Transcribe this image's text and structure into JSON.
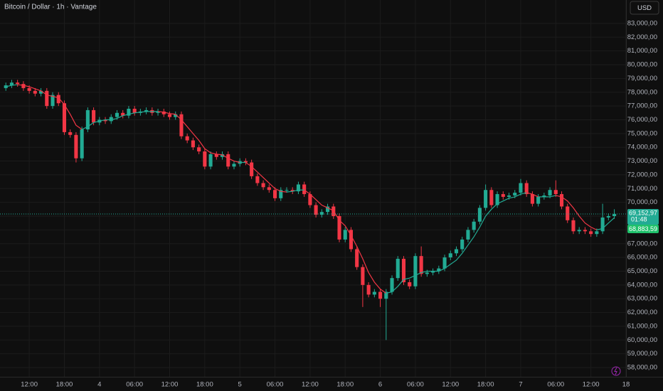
{
  "chart_data": {
    "type": "candlestick",
    "title": "Bitcoin / Dollar · 1h · Vantage",
    "currency": "USD",
    "countdown": "01:48",
    "grid": true,
    "up_color": "#22ab94",
    "down_color": "#f23645",
    "xlim": [
      -1,
      106
    ],
    "ylim": [
      57330,
      84700
    ],
    "xticks": [
      {
        "value": 4,
        "label": "12:00"
      },
      {
        "value": 10,
        "label": "18:00"
      },
      {
        "value": 16,
        "label": "4"
      },
      {
        "value": 22,
        "label": "06:00"
      },
      {
        "value": 28,
        "label": "12:00"
      },
      {
        "value": 34,
        "label": "18:00"
      },
      {
        "value": 40,
        "label": "5"
      },
      {
        "value": 46,
        "label": "06:00"
      },
      {
        "value": 52,
        "label": "12:00"
      },
      {
        "value": 58,
        "label": "18:00"
      },
      {
        "value": 64,
        "label": "6"
      },
      {
        "value": 70,
        "label": "06:00"
      },
      {
        "value": 76,
        "label": "12:00"
      },
      {
        "value": 82,
        "label": "18:00"
      },
      {
        "value": 88,
        "label": "7"
      },
      {
        "value": 94,
        "label": "06:00"
      },
      {
        "value": 100,
        "label": "12:00"
      },
      {
        "value": 106,
        "label": "18"
      }
    ],
    "yticks": [
      {
        "value": 58000,
        "label": "58,000,00"
      },
      {
        "value": 59000,
        "label": "59,000,00"
      },
      {
        "value": 60000,
        "label": "60,000,00"
      },
      {
        "value": 61000,
        "label": "61,000,00"
      },
      {
        "value": 62000,
        "label": "62,000,00"
      },
      {
        "value": 63000,
        "label": "63,000,00"
      },
      {
        "value": 64000,
        "label": "64,000,00"
      },
      {
        "value": 65000,
        "label": "65,000,00"
      },
      {
        "value": 66000,
        "label": "66,000,00"
      },
      {
        "value": 67000,
        "label": "67,000,00"
      },
      {
        "value": 68000,
        "label": "68,000,00"
      },
      {
        "value": 69000,
        "label": "69,000,00"
      },
      {
        "value": 70000,
        "label": "70,000,00"
      },
      {
        "value": 71000,
        "label": "71,000,00"
      },
      {
        "value": 72000,
        "label": "72,000,00"
      },
      {
        "value": 73000,
        "label": "73,000,00"
      },
      {
        "value": 74000,
        "label": "74,000,00"
      },
      {
        "value": 75000,
        "label": "75,000,00"
      },
      {
        "value": 76000,
        "label": "76,000,00"
      },
      {
        "value": 77000,
        "label": "77,000,00"
      },
      {
        "value": 78000,
        "label": "78,000,00"
      },
      {
        "value": 79000,
        "label": "79,000,00"
      },
      {
        "value": 80000,
        "label": "80,000,00"
      },
      {
        "value": 81000,
        "label": "81,000,00"
      },
      {
        "value": 82000,
        "label": "82,000,00"
      },
      {
        "value": 83000,
        "label": "83,000,00"
      }
    ],
    "x": [
      0,
      1,
      2,
      3,
      4,
      5,
      6,
      7,
      8,
      9,
      10,
      11,
      12,
      13,
      14,
      15,
      16,
      17,
      18,
      19,
      20,
      21,
      22,
      23,
      24,
      25,
      26,
      27,
      28,
      29,
      30,
      31,
      32,
      33,
      34,
      35,
      36,
      37,
      38,
      39,
      40,
      41,
      42,
      43,
      44,
      45,
      46,
      47,
      48,
      49,
      50,
      51,
      52,
      53,
      54,
      55,
      56,
      57,
      58,
      59,
      60,
      61,
      62,
      63,
      64,
      65,
      66,
      67,
      68,
      69,
      70,
      71,
      72,
      73,
      74,
      75,
      76,
      77,
      78,
      79,
      80,
      81,
      82,
      83,
      84,
      85,
      86,
      87,
      88,
      89,
      90,
      91,
      92,
      93,
      94,
      95,
      96,
      97,
      98,
      99,
      100,
      101,
      102,
      103,
      104
    ],
    "open": [
      78300,
      78500,
      78700,
      78600,
      78300,
      78100,
      77900,
      78100,
      77000,
      77800,
      77200,
      75100,
      74900,
      73200,
      75300,
      76700,
      75800,
      76000,
      75900,
      76200,
      76500,
      76300,
      76800,
      76500,
      76600,
      76700,
      76500,
      76600,
      76400,
      76200,
      76400,
      74800,
      74500,
      74000,
      73700,
      72600,
      73500,
      73300,
      73500,
      72600,
      72800,
      73000,
      72900,
      71900,
      71400,
      71100,
      70900,
      70300,
      70900,
      70900,
      70800,
      71300,
      70600,
      69800,
      69100,
      69300,
      69700,
      69000,
      67300,
      68000,
      66600,
      65300,
      64000,
      63300,
      63500,
      63000,
      63500,
      64500,
      65900,
      64200,
      63900,
      66100,
      64800,
      64900,
      65000,
      65200,
      66000,
      66300,
      66600,
      67300,
      68000,
      68600,
      69600,
      70900,
      69800,
      70600,
      70400,
      70500,
      70700,
      71400,
      70600,
      69900,
      70400,
      70500,
      70900,
      70600,
      69700,
      68700,
      67900,
      68000,
      67900,
      67700,
      67900,
      68900,
      69000
    ],
    "high": [
      78700,
      78900,
      78900,
      78800,
      78500,
      78300,
      78300,
      78300,
      78000,
      78000,
      77400,
      75300,
      75100,
      75500,
      76900,
      76900,
      76200,
      76200,
      76400,
      76700,
      76700,
      77000,
      77000,
      76800,
      76900,
      76900,
      76800,
      76800,
      76600,
      76600,
      76600,
      75000,
      74700,
      74200,
      73900,
      73700,
      73700,
      73700,
      73700,
      73000,
      73200,
      73200,
      73100,
      72100,
      71600,
      71300,
      71100,
      71100,
      71100,
      71100,
      71500,
      71500,
      70800,
      70000,
      69500,
      69900,
      69900,
      69200,
      68200,
      68200,
      66800,
      65500,
      64200,
      63700,
      63700,
      63700,
      64700,
      66100,
      66100,
      64400,
      66300,
      66800,
      65100,
      65200,
      65400,
      66200,
      66500,
      66800,
      67500,
      68200,
      68800,
      69800,
      71300,
      71100,
      70800,
      70800,
      70700,
      70900,
      71700,
      71600,
      70800,
      70600,
      70700,
      71100,
      71600,
      70800,
      69900,
      68900,
      68200,
      68200,
      68100,
      68100,
      69900,
      69200,
      69500
    ],
    "low": [
      78100,
      78300,
      78400,
      78100,
      77900,
      77700,
      77700,
      76800,
      76800,
      77000,
      74900,
      74700,
      72900,
      73000,
      75100,
      75600,
      75600,
      75700,
      75700,
      76000,
      76100,
      76100,
      76300,
      76300,
      76400,
      76300,
      76300,
      76200,
      76000,
      76000,
      74600,
      74300,
      73800,
      73500,
      72400,
      72400,
      73100,
      73100,
      72400,
      72400,
      72600,
      72700,
      71700,
      71200,
      70900,
      70700,
      70100,
      70100,
      70700,
      70600,
      70600,
      70400,
      69600,
      68900,
      68900,
      69100,
      68800,
      67100,
      67100,
      66400,
      65100,
      62400,
      63100,
      63100,
      62400,
      60000,
      63300,
      64300,
      64000,
      63700,
      63700,
      64600,
      64600,
      64700,
      64800,
      65000,
      65800,
      66100,
      66400,
      67100,
      67800,
      68400,
      69400,
      69600,
      69600,
      70200,
      70200,
      70300,
      70500,
      70400,
      69700,
      69700,
      70200,
      70300,
      70400,
      69500,
      68500,
      67700,
      67700,
      67700,
      67500,
      67500,
      67700,
      68700,
      68800
    ],
    "close": [
      78500,
      78700,
      78600,
      78300,
      78100,
      77900,
      78100,
      77000,
      77800,
      77200,
      75100,
      74900,
      73200,
      75300,
      76700,
      75800,
      76000,
      75900,
      76200,
      76500,
      76300,
      76800,
      76500,
      76600,
      76700,
      76500,
      76600,
      76400,
      76200,
      76400,
      74800,
      74500,
      74000,
      73700,
      72600,
      73500,
      73300,
      73500,
      72600,
      72800,
      73000,
      72900,
      71900,
      71400,
      71100,
      70900,
      70300,
      70900,
      70900,
      70800,
      71300,
      70600,
      69800,
      69100,
      69300,
      69700,
      69000,
      67300,
      68000,
      66600,
      65300,
      64000,
      63300,
      63500,
      63000,
      63500,
      64500,
      65900,
      64200,
      63900,
      66100,
      64800,
      64900,
      65000,
      65200,
      66000,
      66300,
      66600,
      67300,
      68000,
      68600,
      69600,
      70900,
      69800,
      70600,
      70400,
      70500,
      70700,
      71400,
      70600,
      69900,
      70400,
      70500,
      70900,
      70600,
      69700,
      68700,
      67900,
      68000,
      67900,
      67700,
      67900,
      68900,
      69000,
      69152.97
    ],
    "last_close_label": "69,152,97",
    "ma": [
      78400,
      78500,
      78550,
      78500,
      78400,
      78250,
      78100,
      77800,
      77700,
      77600,
      77100,
      76400,
      75600,
      75300,
      75500,
      75800,
      75900,
      76000,
      76000,
      76100,
      76300,
      76400,
      76500,
      76550,
      76600,
      76600,
      76600,
      76550,
      76450,
      76400,
      76000,
      75500,
      75000,
      74500,
      73900,
      73600,
      73500,
      73450,
      73200,
      73000,
      72900,
      72900,
      72600,
      72200,
      71800,
      71400,
      71000,
      70800,
      70750,
      70800,
      70900,
      70900,
      70600,
      70200,
      69800,
      69600,
      69400,
      68700,
      68300,
      67600,
      66800,
      65900,
      64900,
      64200,
      63700,
      63400,
      63500,
      63900,
      64400,
      64500,
      64700,
      64900,
      65000,
      65000,
      65000,
      65200,
      65500,
      65800,
      66300,
      66900,
      67500,
      68200,
      69000,
      69500,
      69900,
      70100,
      70300,
      70400,
      70600,
      70700,
      70600,
      70400,
      70400,
      70400,
      70500,
      70400,
      70100,
      69600,
      69000,
      68500,
      68200,
      68000,
      68100,
      68500,
      68883.59
    ],
    "last_ma_label": "68,883,59"
  }
}
